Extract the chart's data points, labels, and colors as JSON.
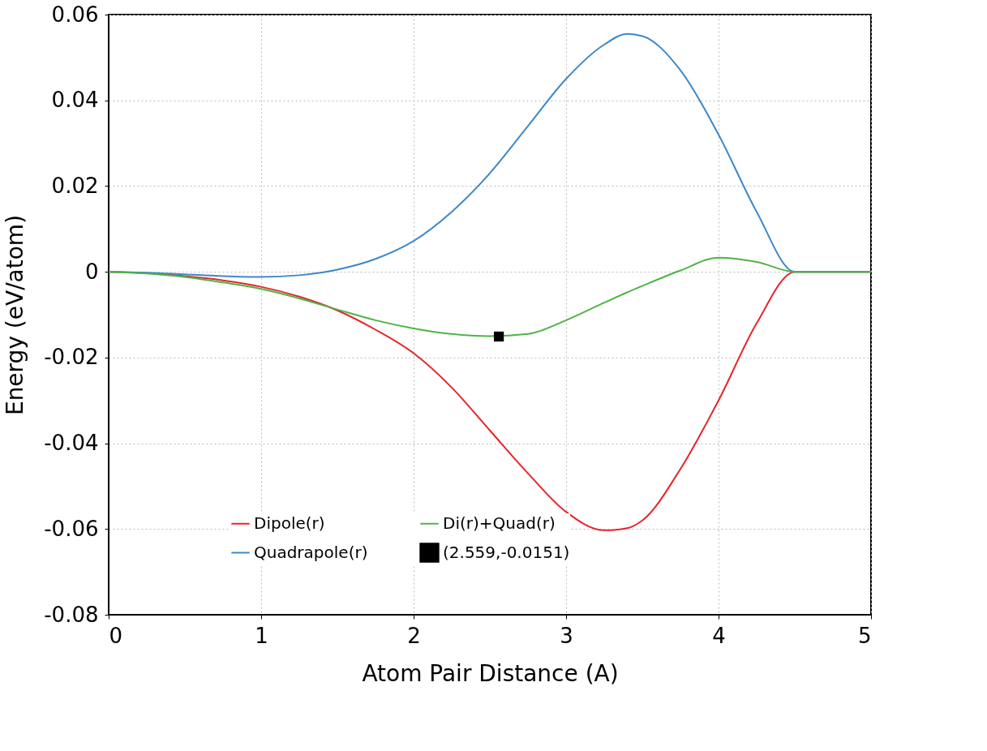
{
  "chart_data": {
    "type": "line",
    "xlabel": "Atom Pair Distance (A)",
    "ylabel": "Energy (eV/atom)",
    "xlim": [
      0,
      5
    ],
    "xticks": [
      0,
      1,
      2,
      3,
      4,
      5
    ],
    "ylim": [
      -0.08,
      0.06
    ],
    "yticks": [
      -0.08,
      -0.06,
      -0.04,
      -0.02,
      0,
      0.02,
      0.04,
      0.06
    ],
    "grid": true,
    "legend": "bottom",
    "line_style": "solid",
    "x": [
      0,
      0.25,
      0.5,
      0.75,
      1,
      1.25,
      1.5,
      1.75,
      2,
      2.25,
      2.5,
      2.75,
      3,
      3.25,
      3.4,
      3.5,
      3.75,
      4,
      4.25,
      4.5,
      4.75,
      5
    ],
    "series": [
      {
        "name": "Dipole(r)",
        "color": "#e8252a",
        "values": [
          0,
          -0.0003,
          -0.001,
          -0.002,
          -0.0035,
          -0.0058,
          -0.009,
          -0.0135,
          -0.019,
          -0.027,
          -0.037,
          -0.047,
          -0.056,
          -0.0603,
          -0.0598,
          -0.058,
          -0.046,
          -0.03,
          -0.012,
          0,
          0,
          0
        ]
      },
      {
        "name": "Quadrapole(r)",
        "color": "#3c88c8",
        "values": [
          0,
          -0.0002,
          -0.0006,
          -0.001,
          -0.0012,
          -0.0008,
          0.0005,
          0.003,
          0.0072,
          0.014,
          0.023,
          0.034,
          0.045,
          0.053,
          0.0555,
          0.055,
          0.047,
          0.032,
          0.014,
          0,
          0,
          0
        ]
      },
      {
        "name": "Di(r)+Quad(r)",
        "color": "#4eb346",
        "values": [
          0,
          -0.0004,
          -0.0012,
          -0.0025,
          -0.004,
          -0.0062,
          -0.0088,
          -0.0113,
          -0.0132,
          -0.0145,
          -0.015,
          -0.0145,
          -0.0113,
          -0.0072,
          -0.0048,
          -0.0033,
          0.0003,
          0.0033,
          0.0023,
          0,
          0,
          0
        ]
      },
      {
        "name": "(2.559,-0.0151)",
        "color": "#000000",
        "type": "scatter",
        "marker": "square",
        "x": [
          2.559
        ],
        "values": [
          -0.0151
        ]
      }
    ]
  }
}
